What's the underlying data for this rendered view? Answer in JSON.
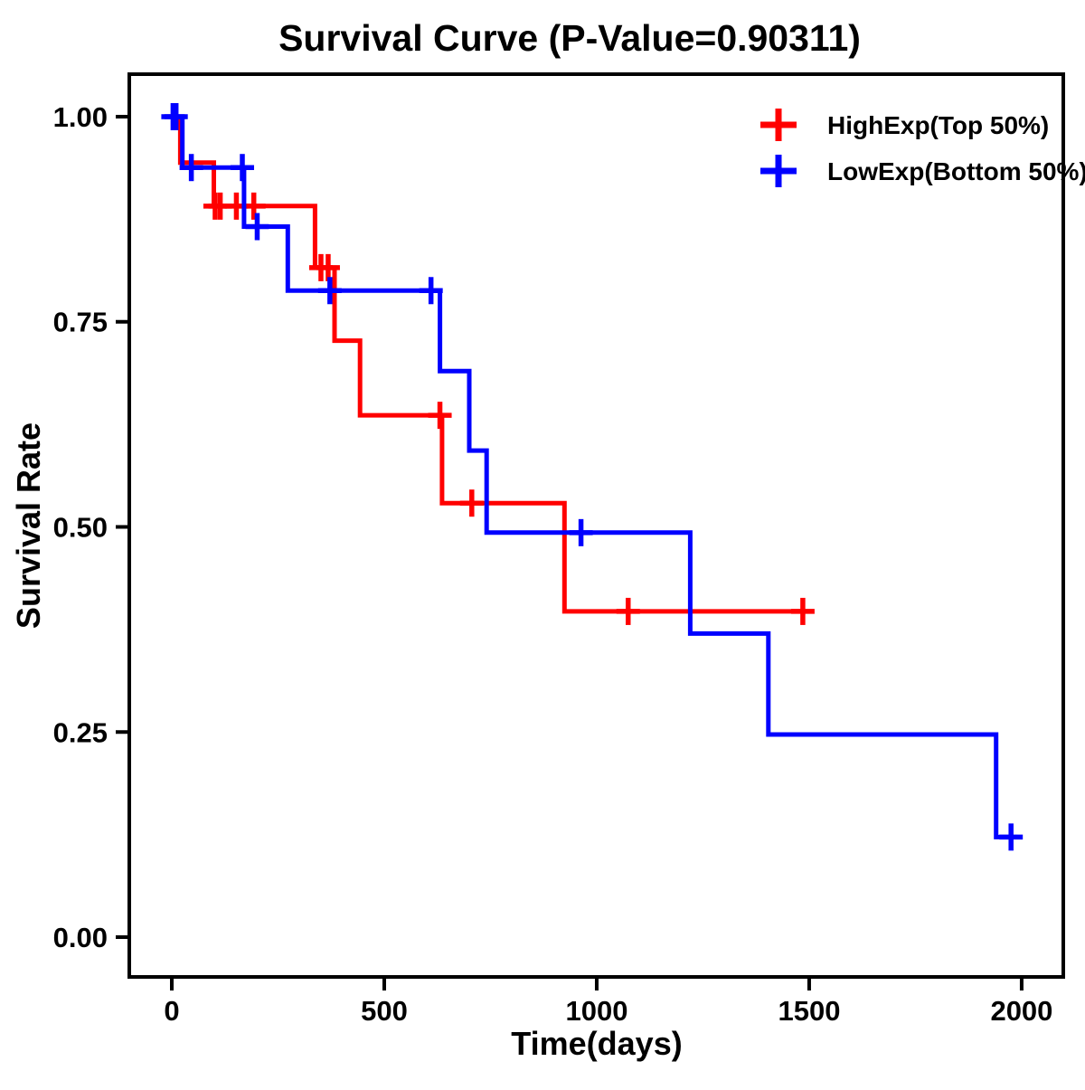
{
  "chart_data": {
    "type": "line",
    "subtype": "kaplan_meier_step_survival",
    "title": "Survival Curve (P-Value=0.90311)",
    "xlabel": "Time(days)",
    "ylabel": "Survival Rate",
    "xlim": [
      -100,
      2098
    ],
    "ylim": [
      -0.0485,
      1.0518
    ],
    "grid": false,
    "legend_position": "upper-right-inside",
    "axis_color": "#000000",
    "background_color": "#ffffff",
    "xticks": {
      "values": [
        0,
        500,
        1000,
        1500,
        2000
      ],
      "labels": [
        "0",
        "500",
        "1000",
        "1500",
        "2000"
      ]
    },
    "yticks": {
      "values": [
        0,
        0.25,
        0.5,
        0.75,
        1
      ],
      "labels": [
        "0.00",
        "0.25",
        "0.50",
        "0.75",
        "1.00"
      ]
    },
    "series": [
      {
        "name": "HighExp(Top 50%)",
        "color": "#ff0000",
        "marker": "plus",
        "steps": [
          [
            0,
            1.0
          ],
          [
            20,
            0.944
          ],
          [
            99,
            0.891
          ],
          [
            337,
            0.816
          ],
          [
            383,
            0.727
          ],
          [
            443,
            0.636
          ],
          [
            636,
            0.529
          ],
          [
            924,
            0.397
          ],
          [
            1510,
            0.397
          ]
        ],
        "censor_marks": [
          [
            102,
            0.891
          ],
          [
            114,
            0.891
          ],
          [
            152,
            0.891
          ],
          [
            193,
            0.891
          ],
          [
            351,
            0.816
          ],
          [
            368,
            0.816
          ],
          [
            631,
            0.636
          ],
          [
            706,
            0.529
          ],
          [
            1074,
            0.397
          ],
          [
            1485,
            0.397
          ]
        ]
      },
      {
        "name": "LowExp(Bottom 50%)",
        "color": "#0000ff",
        "marker": "plus",
        "steps": [
          [
            0,
            1.0
          ],
          [
            25,
            0.938
          ],
          [
            170,
            0.866
          ],
          [
            273,
            0.788
          ],
          [
            631,
            0.69
          ],
          [
            700,
            0.593
          ],
          [
            741,
            0.493
          ],
          [
            1220,
            0.37
          ],
          [
            1404,
            0.247
          ],
          [
            1940,
            0.122
          ],
          [
            1990,
            0.122
          ]
        ],
        "censor_marks": [
          [
            3,
            1.0
          ],
          [
            10,
            1.0
          ],
          [
            46,
            0.938
          ],
          [
            166,
            0.938
          ],
          [
            201,
            0.866
          ],
          [
            372,
            0.788
          ],
          [
            610,
            0.788
          ],
          [
            963,
            0.493
          ],
          [
            1975,
            0.122
          ]
        ]
      }
    ]
  }
}
